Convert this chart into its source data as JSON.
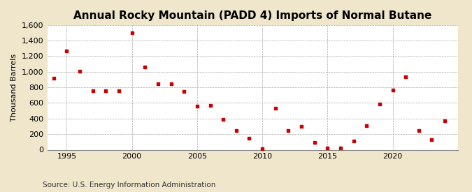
{
  "title": "Annual Rocky Mountain (PADD 4) Imports of Normal Butane",
  "ylabel": "Thousand Barrels",
  "source": "Source: U.S. Energy Information Administration",
  "figure_facecolor": "#f0e6cc",
  "plot_facecolor": "#ffffff",
  "marker_color": "#cc0000",
  "years": [
    1994,
    1995,
    1996,
    1997,
    1998,
    1999,
    2000,
    2001,
    2002,
    2003,
    2004,
    2005,
    2006,
    2007,
    2008,
    2009,
    2010,
    2011,
    2012,
    2013,
    2014,
    2015,
    2016,
    2017,
    2018,
    2019,
    2020,
    2021,
    2022,
    2023,
    2024
  ],
  "values": [
    920,
    1270,
    1005,
    755,
    760,
    760,
    1495,
    1060,
    850,
    850,
    750,
    555,
    565,
    385,
    250,
    150,
    10,
    535,
    250,
    300,
    90,
    20,
    20,
    110,
    305,
    590,
    765,
    935,
    250,
    130,
    370
  ],
  "ylim": [
    0,
    1600
  ],
  "yticks": [
    0,
    200,
    400,
    600,
    800,
    1000,
    1200,
    1400,
    1600
  ],
  "xlim": [
    1993.5,
    2025
  ],
  "xticks": [
    1995,
    2000,
    2005,
    2010,
    2015,
    2020
  ],
  "title_fontsize": 11,
  "label_fontsize": 8,
  "tick_fontsize": 8,
  "source_fontsize": 7.5
}
